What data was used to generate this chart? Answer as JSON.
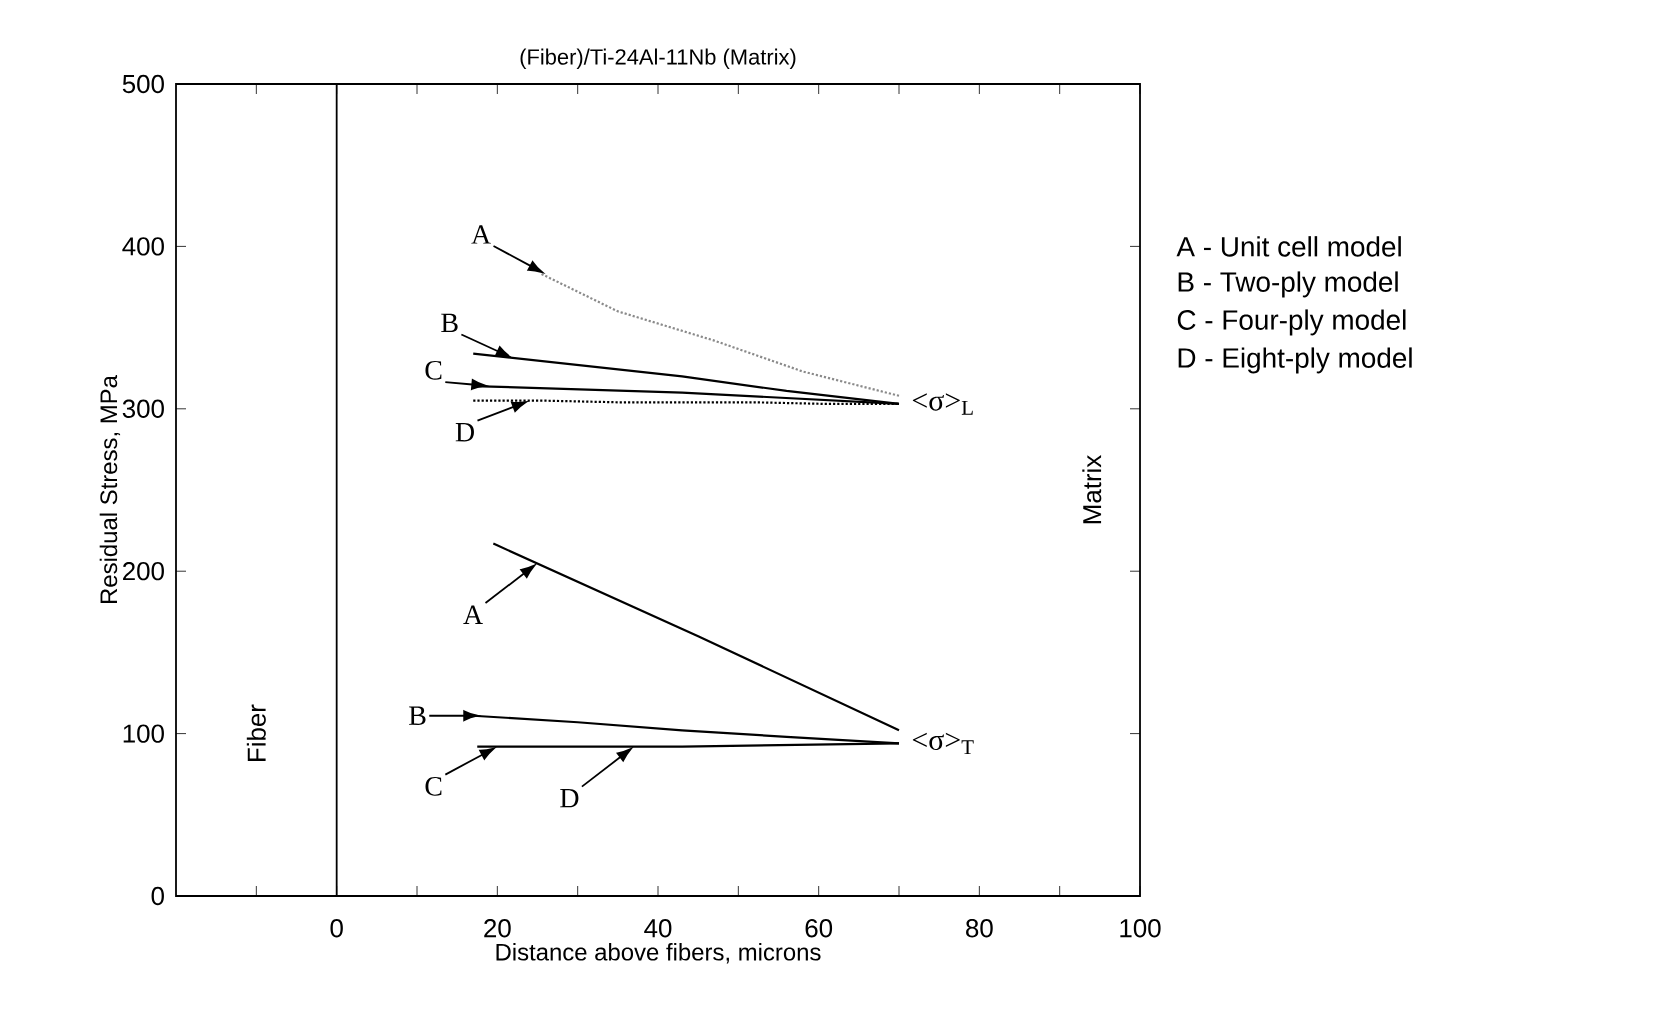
{
  "chart_data": {
    "type": "line",
    "title": "(Fiber)/Ti-24Al-11Nb  (Matrix)",
    "xlabel": "Distance above fibers, microns",
    "ylabel": "Residual Stress, MPa",
    "xlim": [
      -20,
      100
    ],
    "ylim": [
      0,
      500
    ],
    "xticks": [
      {
        "value": -10,
        "label": null
      },
      0,
      {
        "value": 10,
        "label": null
      },
      20,
      {
        "value": 30,
        "label": null
      },
      40,
      {
        "value": 50,
        "label": null
      },
      60,
      {
        "value": 70,
        "label": null
      },
      80,
      {
        "value": 90,
        "label": null
      },
      100
    ],
    "yticks": [
      0,
      100,
      200,
      300,
      400,
      500
    ],
    "grid": false,
    "marker": "none",
    "series": [
      {
        "color": "#8a8a8a",
        "line_style": "dotted",
        "x": [
          25.5,
          35,
          47,
          58,
          70
        ],
        "values": [
          383,
          360,
          342,
          323,
          308
        ]
      },
      {
        "color": "#000000",
        "line_style": "solid",
        "x": [
          17,
          30,
          43,
          56,
          70
        ],
        "values": [
          334,
          327,
          320,
          311,
          303
        ]
      },
      {
        "color": "#000000",
        "line_style": "solid",
        "x": [
          17,
          43,
          70
        ],
        "values": [
          314,
          310,
          303
        ]
      },
      {
        "color": "#000000",
        "line_style": "dotted",
        "x": [
          17,
          26,
          35,
          43,
          52,
          61,
          70
        ],
        "values": [
          305,
          305,
          304,
          304,
          304,
          303,
          303
        ]
      },
      {
        "color": "#000000",
        "line_style": "solid",
        "x": [
          19.5,
          45,
          70
        ],
        "values": [
          217,
          160,
          102
        ]
      },
      {
        "color": "#000000",
        "line_style": "solid",
        "x": [
          17,
          30,
          43,
          56,
          70
        ],
        "values": [
          111,
          107,
          102,
          98,
          94
        ]
      },
      {
        "color": "#000000",
        "line_style": "solid",
        "x": [
          17.5,
          43,
          70
        ],
        "values": [
          92,
          92,
          94
        ]
      }
    ],
    "ref_lines": [
      {
        "axis": "x",
        "value": 0,
        "label": null
      }
    ],
    "annotations": [
      {
        "text": "A",
        "x": 26,
        "y": 383
      },
      {
        "text": "B",
        "x": 22,
        "y": 331
      },
      {
        "text": "C",
        "x": 19,
        "y": 314
      },
      {
        "text": "D",
        "x": 24,
        "y": 305
      },
      {
        "text": "A",
        "x": 25,
        "y": 205
      },
      {
        "text": "B",
        "x": 18,
        "y": 111
      },
      {
        "text": "C",
        "x": 20,
        "y": 92
      },
      {
        "text": "D",
        "x": 37,
        "y": 92
      },
      {
        "text": "<σ>$_{L}$",
        "x": 70,
        "y": 303
      },
      {
        "text": "<σ>$_{T}$",
        "x": 70,
        "y": 94
      },
      "Fiber",
      "Matrix",
      "A  -  Unit cell model",
      "B  -  Two-ply model",
      "C  -  Four-ply model",
      "D  -  Eight-ply model"
    ]
  }
}
